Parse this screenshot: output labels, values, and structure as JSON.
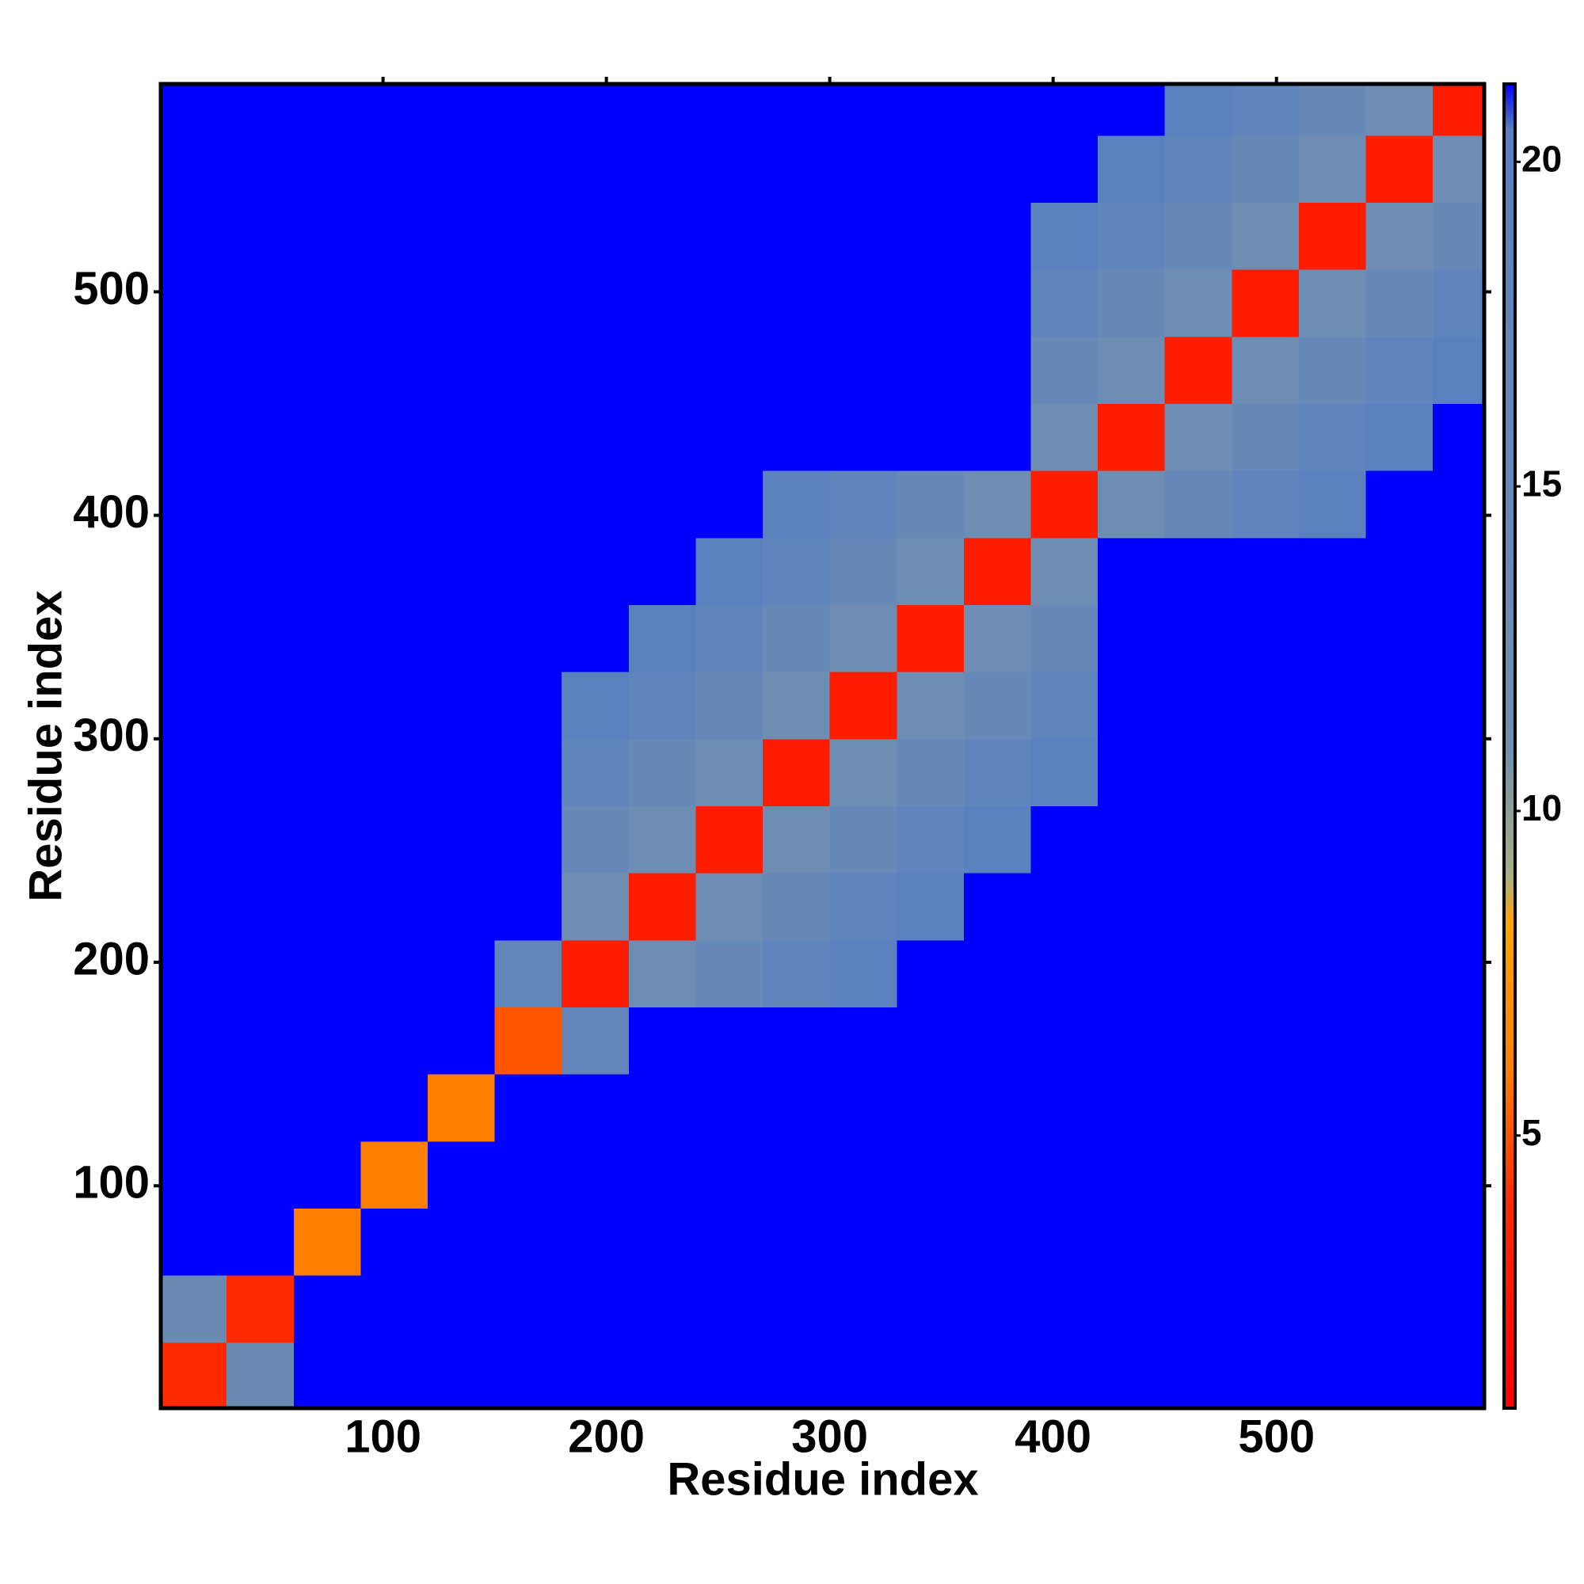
{
  "chart_data": {
    "type": "heatmap",
    "xlabel": "Residue index",
    "ylabel": "Residue index",
    "xlim": [
      0.5,
      593
    ],
    "ylim": [
      0.5,
      593
    ],
    "xticks": [
      100,
      200,
      300,
      400,
      500
    ],
    "yticks": [
      100,
      200,
      300,
      400,
      500
    ],
    "bins": [
      0.5,
      30,
      60,
      90,
      120,
      150,
      180,
      210,
      240,
      270,
      300,
      330,
      360,
      390,
      420,
      450,
      480,
      510,
      540,
      570,
      593
    ],
    "z": [
      [
        4,
        14,
        21.2,
        21.2,
        21.2,
        21.2,
        21.2,
        21.2,
        21.2,
        21.2,
        21.2,
        21.2,
        21.2,
        21.2,
        21.2,
        21.2,
        21.2,
        21.2,
        21.2,
        21.2
      ],
      [
        14,
        4,
        21.2,
        21.2,
        21.2,
        21.2,
        21.2,
        21.2,
        21.2,
        21.2,
        21.2,
        21.2,
        21.2,
        21.2,
        21.2,
        21.2,
        21.2,
        21.2,
        21.2,
        21.2
      ],
      [
        21.2,
        21.2,
        6,
        21.2,
        21.2,
        21.2,
        21.2,
        21.2,
        21.2,
        21.2,
        21.2,
        21.2,
        21.2,
        21.2,
        21.2,
        21.2,
        21.2,
        21.2,
        21.2,
        21.2
      ],
      [
        21.2,
        21.2,
        21.2,
        6,
        21.2,
        21.2,
        21.2,
        21.2,
        21.2,
        21.2,
        21.2,
        21.2,
        21.2,
        21.2,
        21.2,
        21.2,
        21.2,
        21.2,
        21.2,
        21.2
      ],
      [
        21.2,
        21.2,
        21.2,
        21.2,
        6,
        21.2,
        21.2,
        21.2,
        21.2,
        21.2,
        21.2,
        21.2,
        21.2,
        21.2,
        21.2,
        21.2,
        21.2,
        21.2,
        21.2,
        21.2
      ],
      [
        21.2,
        21.2,
        21.2,
        21.2,
        21.2,
        5,
        17,
        21.2,
        21.2,
        21.2,
        21.2,
        21.2,
        21.2,
        21.2,
        21.2,
        21.2,
        21.2,
        21.2,
        21.2,
        21.2
      ],
      [
        21.2,
        21.2,
        21.2,
        21.2,
        21.2,
        17,
        3,
        12,
        15,
        18,
        20,
        21.2,
        21.2,
        21.2,
        21.2,
        21.2,
        21.2,
        21.2,
        21.2,
        21.2
      ],
      [
        21.2,
        21.2,
        21.2,
        21.2,
        21.2,
        21.2,
        12,
        3,
        12,
        15,
        18,
        20,
        21.2,
        21.2,
        21.2,
        21.2,
        21.2,
        21.2,
        21.2,
        21.2
      ],
      [
        21.2,
        21.2,
        21.2,
        21.2,
        21.2,
        21.2,
        15,
        12,
        3,
        12,
        15,
        18,
        20,
        21.2,
        21.2,
        21.2,
        21.2,
        21.2,
        21.2,
        21.2
      ],
      [
        21.2,
        21.2,
        21.2,
        21.2,
        21.2,
        21.2,
        18,
        15,
        12,
        3,
        12,
        15,
        18,
        20,
        21.2,
        21.2,
        21.2,
        21.2,
        21.2,
        21.2
      ],
      [
        21.2,
        21.2,
        21.2,
        21.2,
        21.2,
        21.2,
        20,
        18,
        15,
        12,
        3,
        12,
        15,
        18,
        21.2,
        21.2,
        21.2,
        21.2,
        21.2,
        21.2
      ],
      [
        21.2,
        21.2,
        21.2,
        21.2,
        21.2,
        21.2,
        21.2,
        20,
        18,
        15,
        12,
        3,
        12,
        15,
        21.2,
        21.2,
        21.2,
        21.2,
        21.2,
        21.2
      ],
      [
        21.2,
        21.2,
        21.2,
        21.2,
        21.2,
        21.2,
        21.2,
        21.2,
        20,
        18,
        15,
        12,
        3,
        12,
        21.2,
        21.2,
        21.2,
        21.2,
        21.2,
        21.2
      ],
      [
        21.2,
        21.2,
        21.2,
        21.2,
        21.2,
        21.2,
        21.2,
        21.2,
        21.2,
        20,
        18,
        15,
        12,
        3,
        12,
        15,
        18,
        20,
        21.2,
        21.2
      ],
      [
        21.2,
        21.2,
        21.2,
        21.2,
        21.2,
        21.2,
        21.2,
        21.2,
        21.2,
        21.2,
        21.2,
        21.2,
        21.2,
        12,
        3,
        12,
        15,
        18,
        20,
        21.2
      ],
      [
        21.2,
        21.2,
        21.2,
        21.2,
        21.2,
        21.2,
        21.2,
        21.2,
        21.2,
        21.2,
        21.2,
        21.2,
        21.2,
        15,
        12,
        3,
        12,
        15,
        18,
        20
      ],
      [
        21.2,
        21.2,
        21.2,
        21.2,
        21.2,
        21.2,
        21.2,
        21.2,
        21.2,
        21.2,
        21.2,
        21.2,
        21.2,
        18,
        15,
        12,
        3,
        12,
        15,
        18
      ],
      [
        21.2,
        21.2,
        21.2,
        21.2,
        21.2,
        21.2,
        21.2,
        21.2,
        21.2,
        21.2,
        21.2,
        21.2,
        21.2,
        20,
        18,
        15,
        12,
        3,
        12,
        15
      ],
      [
        21.2,
        21.2,
        21.2,
        21.2,
        21.2,
        21.2,
        21.2,
        21.2,
        21.2,
        21.2,
        21.2,
        21.2,
        21.2,
        21.2,
        20,
        18,
        15,
        12,
        3,
        12
      ],
      [
        21.2,
        21.2,
        21.2,
        21.2,
        21.2,
        21.2,
        21.2,
        21.2,
        21.2,
        21.2,
        21.2,
        21.2,
        21.2,
        21.2,
        21.2,
        20,
        18,
        15,
        12,
        3
      ]
    ],
    "clim": [
      0.8,
      21.2
    ],
    "cticks": [
      5,
      10,
      15,
      20
    ],
    "colorscale": [
      [
        0.8,
        "#ff0000"
      ],
      [
        4,
        "#ff2a00"
      ],
      [
        6,
        "#ff7f00"
      ],
      [
        8.3,
        "#ffa500"
      ],
      [
        9,
        "#a8b080"
      ],
      [
        11,
        "#6f8fb0"
      ],
      [
        20.5,
        "#5b80c0"
      ],
      [
        21.2,
        "#0000ff"
      ]
    ]
  }
}
